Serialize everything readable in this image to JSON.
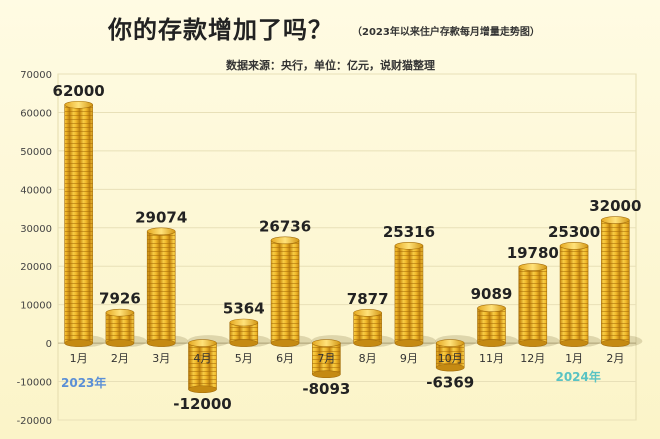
{
  "header": {
    "title": "你的存款增加了吗？",
    "subtitle": "（2023年以来住户存款每月增量走势图）",
    "source": "数据来源：央行，单位：亿元，说财猫整理"
  },
  "colors": {
    "background": "#fdf8d8",
    "coin": "#f2b92a",
    "coin_dark": "#c98a12",
    "grid": "#e8e0b8"
  },
  "chart_data": {
    "type": "bar",
    "title": "你的存款增加了吗？",
    "subtitle": "（2023年以来住户存款每月增量走势图）",
    "unit": "亿元",
    "categories": [
      "1月",
      "2月",
      "3月",
      "4月",
      "5月",
      "6月",
      "7月",
      "8月",
      "9月",
      "10月",
      "11月",
      "12月",
      "1月",
      "2月"
    ],
    "values": [
      62000,
      7926,
      29074,
      -12000,
      5364,
      26736,
      -8093,
      7877,
      25316,
      -6369,
      9089,
      19780,
      25300,
      32000
    ],
    "ylim": [
      -20000,
      70000
    ],
    "yticks": [
      70000,
      60000,
      50000,
      40000,
      30000,
      20000,
      10000,
      0,
      -10000,
      -20000
    ],
    "year_labels": [
      "2023年",
      "2024年"
    ],
    "grid": true,
    "legend": "none"
  }
}
